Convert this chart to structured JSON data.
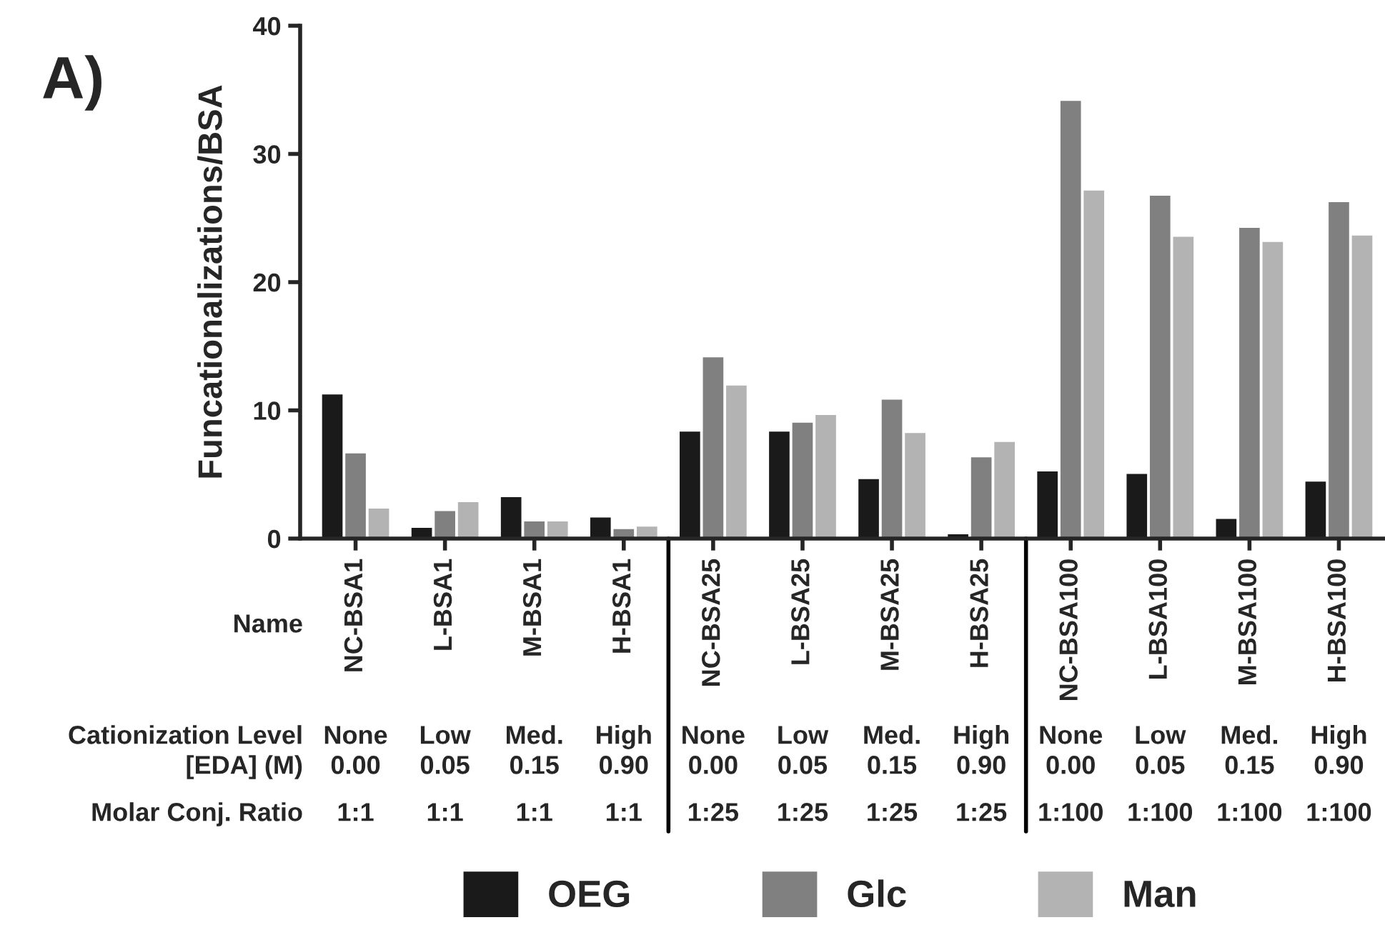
{
  "chart_data": {
    "type": "bar",
    "ylabel": "Funcationalizations/BSA",
    "categories": [
      "NC-BSA1",
      "L-BSA1",
      "M-BSA1",
      "H-BSA1",
      "NC-BSA25",
      "L-BSA25",
      "M-BSA25",
      "H-BSA25",
      "NC-BSA100",
      "L-BSA100",
      "M-BSA100",
      "H-BSA100"
    ],
    "series": [
      {
        "name": "OEG",
        "color": "#1a1a1a",
        "values": [
          11.3,
          0.9,
          3.3,
          1.7,
          8.4,
          8.4,
          4.7,
          0.4,
          5.3,
          5.1,
          1.6,
          4.5
        ]
      },
      {
        "name": "Glc",
        "color": "#808080",
        "values": [
          6.7,
          2.2,
          1.4,
          0.8,
          14.2,
          9.1,
          10.9,
          6.4,
          34.2,
          26.8,
          24.3,
          26.3
        ]
      },
      {
        "name": "Man",
        "color": "#b3b3b3",
        "values": [
          2.4,
          2.9,
          1.4,
          1.0,
          12.0,
          9.7,
          8.3,
          7.6,
          27.2,
          23.6,
          23.2,
          23.7
        ]
      }
    ],
    "ylim": [
      0,
      40
    ],
    "yticks": [
      0,
      10,
      20,
      30,
      40
    ],
    "grid": false,
    "legend": "bottom",
    "annotations": [
      "A)",
      "Name",
      "Cationization Level",
      "[EDA] (M)",
      "Molar Conj. Ratio",
      "None",
      "Low",
      "Med.",
      "High",
      "None",
      "Low",
      "Med.",
      "High",
      "None",
      "Low",
      "Med.",
      "High",
      "0.00",
      "0.05",
      "0.15",
      "0.90",
      "0.00",
      "0.05",
      "0.15",
      "0.90",
      "0.00",
      "0.05",
      "0.15",
      "0.90",
      "1:1",
      "1:1",
      "1:1",
      "1:1",
      "1:25",
      "1:25",
      "1:25",
      "1:25",
      "1:100",
      "1:100",
      "1:100",
      "1:100"
    ]
  }
}
